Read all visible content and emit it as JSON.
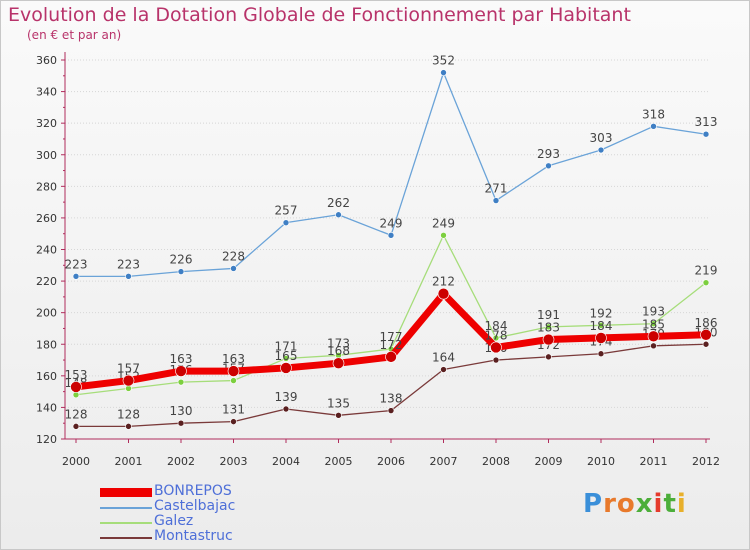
{
  "chart_data": {
    "type": "line",
    "title": "Evolution de la Dotation Globale de Fonctionnement par Habitant",
    "subtitle": "(en € et par an)",
    "x": [
      "2000",
      "2001",
      "2002",
      "2003",
      "2004",
      "2005",
      "2006",
      "2007",
      "2008",
      "2009",
      "2010",
      "2011",
      "2012"
    ],
    "ylim": [
      120,
      360
    ],
    "yticks": [
      120,
      140,
      160,
      180,
      200,
      220,
      240,
      260,
      280,
      300,
      320,
      340,
      360
    ],
    "grid": "horizontal dotted",
    "legend": "bottom-left",
    "series": [
      {
        "name": "Castelbajac",
        "color": "#6aa3d8",
        "marker": "#3f7fc4",
        "width": 1.3,
        "values": [
          223,
          223,
          226,
          228,
          257,
          262,
          249,
          352,
          271,
          293,
          303,
          318,
          313
        ]
      },
      {
        "name": "Galez",
        "color": "#a6dd7a",
        "marker": "#7ccf3e",
        "width": 1.3,
        "values": [
          148,
          152,
          156,
          157,
          171,
          173,
          177,
          249,
          184,
          191,
          192,
          193,
          219
        ]
      },
      {
        "name": "Montastruc",
        "color": "#7a3a3a",
        "marker": "#5a2020",
        "width": 1.3,
        "values": [
          128,
          128,
          130,
          131,
          139,
          135,
          138,
          164,
          170,
          172,
          174,
          179,
          180
        ]
      },
      {
        "name": "BONREPOS",
        "color": "#ee0000",
        "marker": "#cc0000",
        "width": 7,
        "values": [
          153,
          157,
          163,
          163,
          165,
          168,
          172,
          212,
          178,
          183,
          184,
          185,
          186
        ]
      }
    ]
  },
  "legend": {
    "items": [
      "BONREPOS",
      "Castelbajac",
      "Galez",
      "Montastruc"
    ]
  },
  "logo": {
    "letters": [
      "P",
      "r",
      "o",
      "x",
      "i",
      "t",
      "i"
    ],
    "colors": [
      "#3a8fd9",
      "#e8792b",
      "#e8792b",
      "#4cae3a",
      "#e53b2d",
      "#4cae3a",
      "#e8b02b"
    ]
  }
}
